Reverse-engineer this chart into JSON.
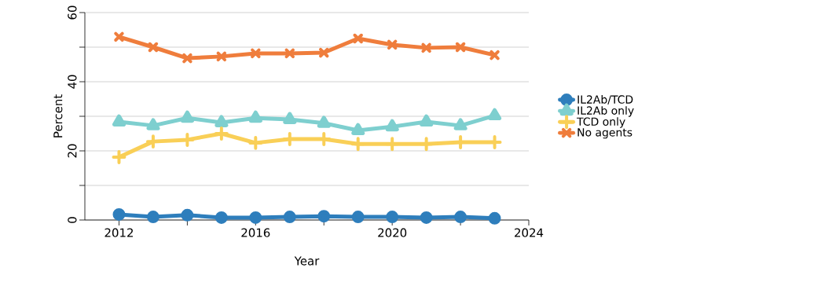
{
  "chart_data": {
    "type": "line",
    "xlabel": "Year",
    "ylabel": "Percent",
    "x": [
      2012,
      2013,
      2014,
      2015,
      2016,
      2017,
      2018,
      2019,
      2020,
      2021,
      2022,
      2023
    ],
    "series": [
      {
        "name": "IL2Ab/TCD",
        "color": "#2e7ebc",
        "marker": "circle",
        "values": [
          1.6,
          0.9,
          1.4,
          0.7,
          0.7,
          0.9,
          1.1,
          0.9,
          0.9,
          0.7,
          0.9,
          0.5
        ]
      },
      {
        "name": "IL2Ab only",
        "color": "#7ecfcf",
        "marker": "triangle",
        "values": [
          28.4,
          27.3,
          29.5,
          28.2,
          29.5,
          29.1,
          28.0,
          25.9,
          27.0,
          28.4,
          27.3,
          30.2
        ]
      },
      {
        "name": "TCD only",
        "color": "#f9cf57",
        "marker": "plus",
        "values": [
          18.2,
          22.7,
          23.2,
          25.0,
          22.3,
          23.4,
          23.4,
          22.0,
          22.0,
          22.0,
          22.5,
          22.5
        ]
      },
      {
        "name": "No agents",
        "color": "#ef7d3c",
        "marker": "cross",
        "values": [
          53.0,
          50.0,
          46.8,
          47.3,
          48.2,
          48.2,
          48.4,
          52.5,
          50.7,
          49.8,
          50.0,
          47.7
        ]
      }
    ],
    "xlim": [
      2011,
      2024
    ],
    "xticks": [
      2012,
      {
        "value": 2014,
        "label": null
      },
      2016,
      {
        "value": 2018,
        "label": null
      },
      2020,
      {
        "value": 2022,
        "label": null
      },
      2024
    ],
    "ylim": [
      0,
      60
    ],
    "yticks": [
      0,
      {
        "value": 10,
        "label": null
      },
      20,
      {
        "value": 30,
        "label": null
      },
      40,
      {
        "value": 50,
        "label": null
      },
      60
    ],
    "grid": "y",
    "legend": "right",
    "line_style": "solid"
  }
}
